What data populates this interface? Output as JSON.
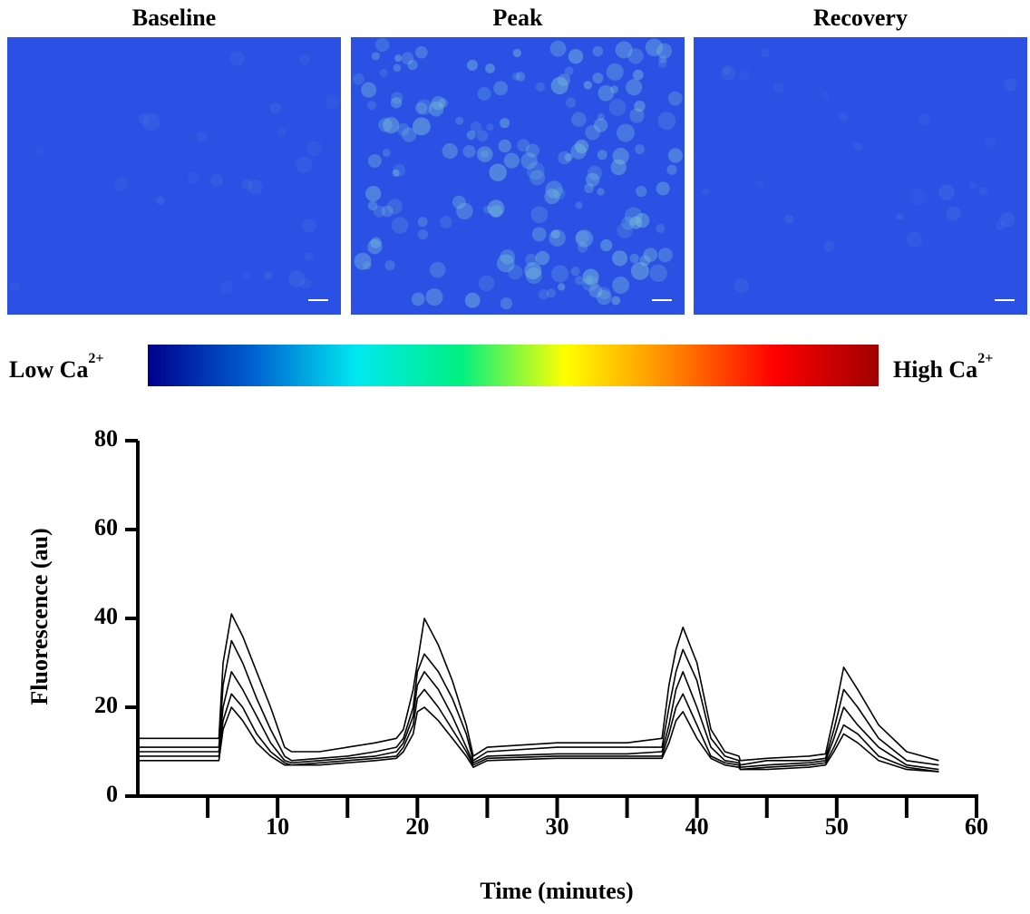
{
  "panels": [
    {
      "title": "Baseline"
    },
    {
      "title": "Peak"
    },
    {
      "title": "Recovery"
    }
  ],
  "colorbar": {
    "low_label": {
      "text": "Low Ca",
      "sup": "2+"
    },
    "high_label": {
      "text": "High Ca",
      "sup": "2+"
    },
    "colors": [
      "#00008b",
      "#0060d0",
      "#00e8f0",
      "#00f080",
      "#ffff00",
      "#ff8800",
      "#ff0000",
      "#a00000"
    ]
  },
  "chart_data": {
    "type": "line",
    "xlabel": "Time (minutes)",
    "ylabel": "Fluorescence (au)",
    "x": [
      0,
      5.8,
      6.1,
      6.7,
      7.5,
      8.5,
      9.5,
      10.5,
      11,
      13,
      15,
      17,
      18.5,
      19,
      19.7,
      20,
      20.5,
      21.5,
      22.5,
      23.5,
      24,
      25,
      30,
      35,
      37.5,
      38,
      38.5,
      39,
      40,
      41,
      42,
      43,
      43.1,
      45,
      48,
      49.2,
      49.8,
      50.5,
      51.5,
      53,
      55,
      57.3
    ],
    "series": [
      {
        "color": "#000000",
        "values": [
          13,
          13,
          30,
          41,
          36,
          28,
          20,
          11,
          10,
          10,
          11,
          12,
          13,
          15,
          24,
          30,
          40,
          34,
          26,
          16,
          9,
          11,
          12,
          12,
          13,
          25,
          33,
          38,
          30,
          15,
          10,
          9,
          8,
          8.5,
          9,
          9.5,
          18,
          29,
          24,
          16,
          10,
          8
        ]
      },
      {
        "color": "#000000",
        "values": [
          11,
          11,
          25,
          35,
          30,
          22,
          15,
          9,
          8,
          8.5,
          9,
          10,
          11,
          13,
          20,
          28,
          32,
          28,
          22,
          14,
          8,
          10,
          11,
          11,
          11,
          20,
          28,
          33,
          26,
          13,
          9,
          8,
          7,
          8,
          8,
          8.5,
          15,
          24,
          20,
          13,
          8,
          7
        ]
      },
      {
        "color": "#000000",
        "values": [
          10,
          10,
          20,
          28,
          24,
          18,
          12,
          8,
          7.5,
          8,
          8.5,
          9,
          10,
          12,
          18,
          25,
          28,
          24,
          18,
          11,
          7.5,
          9,
          9.5,
          9.5,
          10,
          16,
          24,
          28,
          20,
          11,
          8,
          7.5,
          6.5,
          7,
          7.5,
          8,
          13,
          20,
          16,
          11,
          7,
          6
        ]
      },
      {
        "color": "#000000",
        "values": [
          9,
          9,
          17,
          23,
          20,
          14,
          10,
          7.5,
          7,
          7.5,
          8,
          8.5,
          9,
          11,
          16,
          22,
          24,
          20,
          15,
          10,
          7,
          8.5,
          9,
          9,
          9,
          14,
          20,
          23,
          16,
          9,
          7.5,
          7,
          6,
          6.5,
          7,
          7.5,
          11,
          16,
          14,
          9,
          6.5,
          5.5
        ]
      },
      {
        "color": "#000000",
        "values": [
          8,
          8,
          15,
          20,
          17,
          12,
          9,
          7,
          7,
          7,
          7.5,
          8,
          8.5,
          10,
          14,
          19,
          20,
          17,
          13,
          9,
          6.5,
          8,
          8.5,
          8.5,
          8.5,
          12,
          17,
          19,
          13,
          8.5,
          7,
          6.5,
          6,
          6,
          6.5,
          7,
          10,
          14,
          12,
          8,
          6,
          5.5
        ]
      }
    ],
    "xlim": [
      0,
      60
    ],
    "ylim": [
      0,
      80
    ],
    "xticks": [
      10,
      20,
      30,
      40,
      50,
      60
    ],
    "xminorticks": [
      5,
      15,
      25,
      35,
      45,
      55
    ],
    "yticks": [
      0,
      20,
      40,
      60,
      80
    ]
  }
}
